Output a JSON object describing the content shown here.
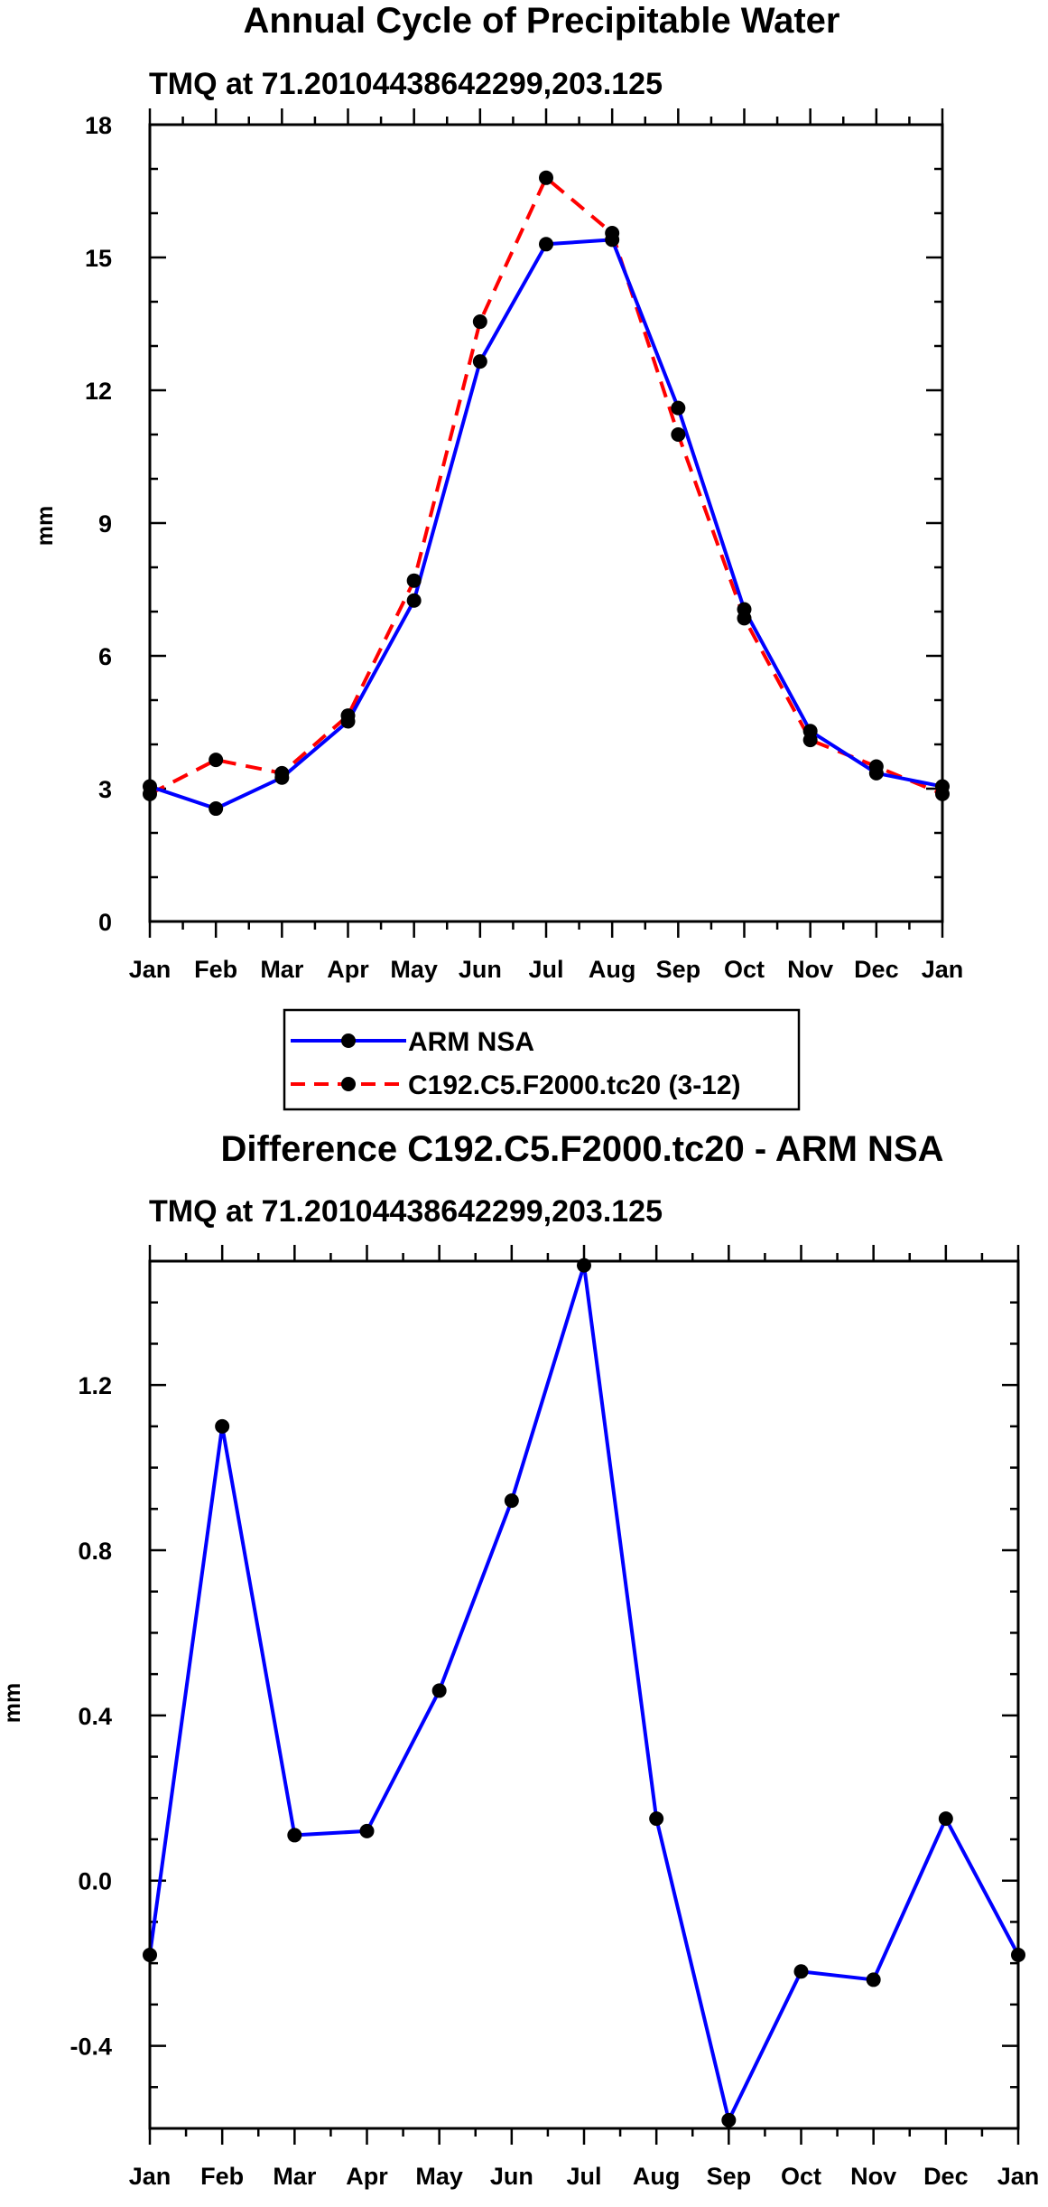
{
  "chart_data": [
    {
      "type": "line",
      "title": "Annual Cycle of Precipitable Water",
      "subtitle": "TMQ at 71.20104438642299,203.125",
      "xlabel": "",
      "ylabel": "mm",
      "categories": [
        "Jan",
        "Feb",
        "Mar",
        "Apr",
        "May",
        "Jun",
        "Jul",
        "Aug",
        "Sep",
        "Oct",
        "Nov",
        "Dec",
        "Jan"
      ],
      "ylim": [
        0,
        18
      ],
      "yticks": [
        "0",
        "3",
        "6",
        "9",
        "12",
        "15",
        "18"
      ],
      "series": [
        {
          "name": "ARM NSA",
          "color": "#0000ff",
          "dash": "solid",
          "values": [
            3.05,
            2.55,
            3.25,
            4.52,
            7.25,
            12.65,
            15.3,
            15.4,
            11.6,
            7.05,
            4.3,
            3.35,
            3.05
          ]
        },
        {
          "name": "C192.C5.F2000.tc20 (3-12)",
          "color": "#ff0000",
          "dash": "dashed",
          "values": [
            2.88,
            3.65,
            3.35,
            4.65,
            7.7,
            13.55,
            16.8,
            15.55,
            11.0,
            6.85,
            4.1,
            3.5,
            2.88
          ]
        }
      ],
      "legend": [
        "ARM NSA",
        "C192.C5.F2000.tc20 (3-12)"
      ]
    },
    {
      "type": "line",
      "title": "Difference C192.C5.F2000.tc20 - ARM NSA",
      "subtitle": "TMQ at 71.20104438642299,203.125",
      "xlabel": "",
      "ylabel": "mm",
      "categories": [
        "Jan",
        "Feb",
        "Mar",
        "Apr",
        "May",
        "Jun",
        "Jul",
        "Aug",
        "Sep",
        "Oct",
        "Nov",
        "Dec",
        "Jan"
      ],
      "ylim": [
        -0.6,
        1.5
      ],
      "yticks": [
        "-0.4",
        "0.0",
        "0.4",
        "0.8",
        "1.2"
      ],
      "series": [
        {
          "name": "Difference",
          "color": "#0000ff",
          "dash": "solid",
          "values": [
            -0.18,
            1.1,
            0.11,
            0.12,
            0.46,
            0.92,
            1.49,
            0.15,
            -0.58,
            -0.22,
            -0.24,
            0.15,
            -0.18
          ]
        }
      ]
    }
  ]
}
